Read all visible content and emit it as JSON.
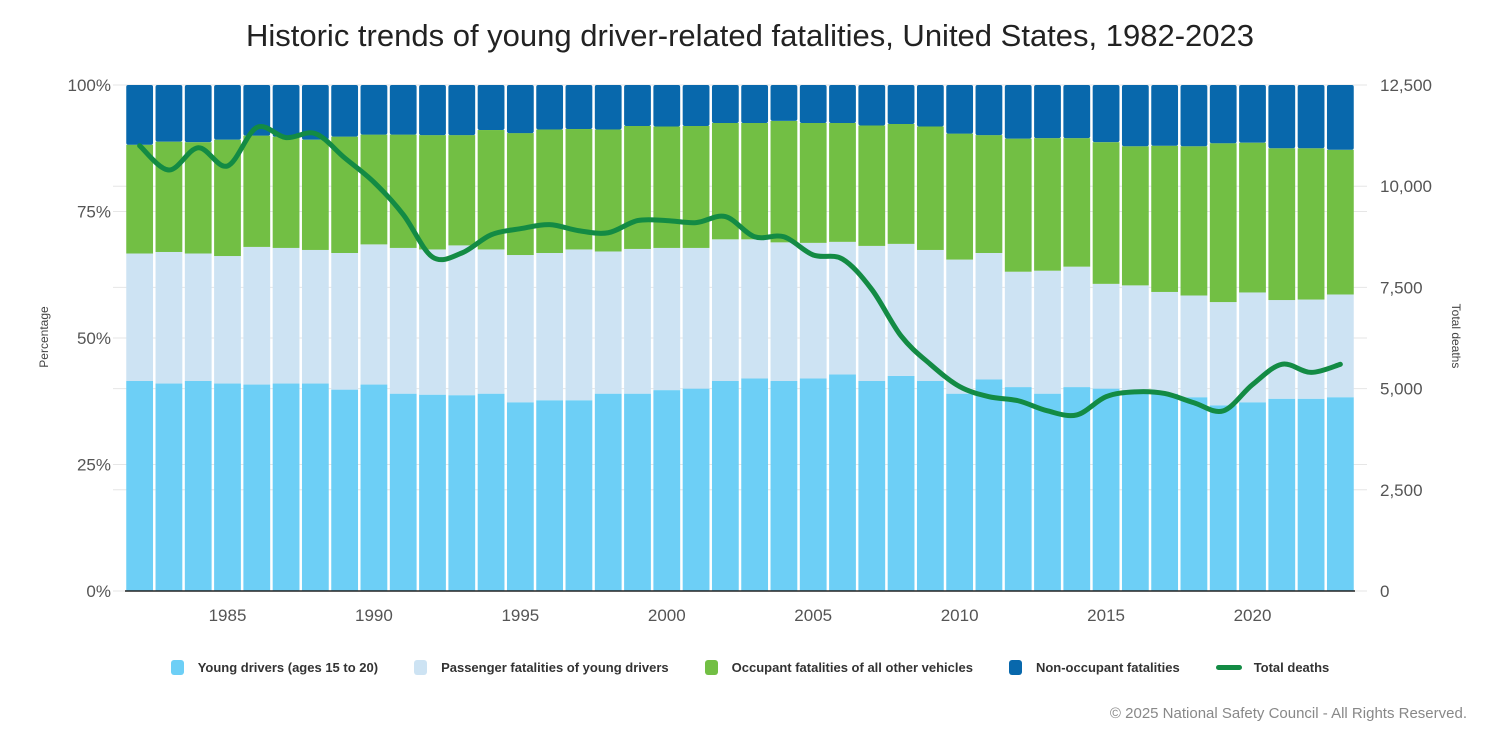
{
  "chart_data": {
    "type": "bar",
    "stacked": true,
    "title": "Historic trends of young driver-related fatalities, United States, 1982-2023",
    "ylabel": "Percentage",
    "y2label": "Total deaths",
    "ylim": [
      0,
      100
    ],
    "y2lim": [
      0,
      12500
    ],
    "yticks": [
      "0%",
      "25%",
      "50%",
      "75%",
      "100%"
    ],
    "y2ticks": [
      "0",
      "2,500",
      "5,000",
      "7,500",
      "10,000",
      "12,500"
    ],
    "xticks": [
      "1985",
      "1990",
      "1995",
      "2000",
      "2005",
      "2010",
      "2015",
      "2020"
    ],
    "categories": [
      1982,
      1983,
      1984,
      1985,
      1986,
      1987,
      1988,
      1989,
      1990,
      1991,
      1992,
      1993,
      1994,
      1995,
      1996,
      1997,
      1998,
      1999,
      2000,
      2001,
      2002,
      2003,
      2004,
      2005,
      2006,
      2007,
      2008,
      2009,
      2010,
      2011,
      2012,
      2013,
      2014,
      2015,
      2016,
      2017,
      2018,
      2019,
      2020,
      2021,
      2022,
      2023
    ],
    "series": [
      {
        "name": "Young drivers (ages 15 to 20)",
        "color": "#6dcff6",
        "values": [
          41.5,
          41,
          41.5,
          41,
          40.8,
          41,
          41,
          39.8,
          40.8,
          39,
          38.8,
          38.7,
          39,
          37.3,
          37.7,
          37.7,
          39,
          39,
          39.7,
          40,
          41.5,
          42,
          41.5,
          42,
          42.8,
          41.5,
          42.5,
          41.5,
          39,
          41.8,
          40.3,
          39,
          40.3,
          40,
          39.3,
          39,
          38.3,
          36.7,
          37.3,
          38,
          38,
          38.3
        ]
      },
      {
        "name": "Passenger fatalities of young drivers",
        "color": "#cde3f3",
        "values": [
          25.2,
          26,
          25.2,
          25.2,
          27.2,
          26.8,
          26.4,
          27,
          27.7,
          28.8,
          28.7,
          29.6,
          28.5,
          29.1,
          29.1,
          29.8,
          28.1,
          28.6,
          28.1,
          27.8,
          28,
          27.5,
          27.4,
          26.8,
          26.2,
          26.7,
          26.1,
          25.9,
          26.5,
          25,
          22.8,
          24.3,
          23.8,
          20.7,
          21.1,
          20.1,
          20.1,
          20.4,
          21.7,
          19.5,
          19.6,
          20.3
        ]
      },
      {
        "name": "Occupant fatalities of all other vehicles",
        "color": "#72bf44",
        "values": [
          21.5,
          21.8,
          22,
          23,
          22,
          22,
          21.8,
          23,
          21.7,
          22.4,
          22.6,
          21.8,
          23.6,
          24.1,
          24.4,
          23.8,
          24.1,
          24.3,
          24,
          24.1,
          23,
          23,
          24,
          23.7,
          23.5,
          23.8,
          23.7,
          24.4,
          24.9,
          23.3,
          26.3,
          26.2,
          25.4,
          28,
          27.5,
          28.9,
          29.5,
          31.4,
          29.6,
          30,
          29.9,
          28.6
        ]
      },
      {
        "name": "Non-occupant fatalities",
        "color": "#0868ac",
        "values": [
          11.8,
          11.2,
          11.3,
          10.8,
          10,
          10.2,
          10.8,
          10.2,
          9.8,
          9.8,
          9.9,
          9.9,
          8.9,
          9.5,
          8.8,
          8.7,
          8.8,
          8.1,
          8.2,
          8.1,
          7.5,
          7.5,
          7.1,
          7.5,
          7.5,
          8,
          7.7,
          8.2,
          9.6,
          9.9,
          10.6,
          10.5,
          10.5,
          11.3,
          12.1,
          12,
          12.1,
          11.5,
          11.4,
          12.5,
          12.5,
          12.8
        ]
      }
    ],
    "line": {
      "name": "Total deaths",
      "color": "#138b44",
      "axis": "right",
      "values": [
        11000,
        10400,
        10950,
        10500,
        11450,
        11200,
        11300,
        10700,
        10100,
        9300,
        8250,
        8350,
        8800,
        8950,
        9050,
        8900,
        8850,
        9150,
        9150,
        9100,
        9250,
        8750,
        8750,
        8300,
        8200,
        7450,
        6300,
        5600,
        5050,
        4800,
        4700,
        4450,
        4350,
        4800,
        4920,
        4880,
        4650,
        4450,
        5100,
        5600,
        5400,
        5600
      ]
    }
  },
  "legend": [
    {
      "label": "Young drivers (ages 15 to 20)",
      "kind": "box",
      "color": "#6dcff6"
    },
    {
      "label": "Passenger fatalities of young drivers",
      "kind": "box",
      "color": "#cde3f3"
    },
    {
      "label": "Occupant fatalities of all other vehicles",
      "kind": "box",
      "color": "#72bf44"
    },
    {
      "label": "Non-occupant fatalities",
      "kind": "box",
      "color": "#0868ac"
    },
    {
      "label": "Total deaths",
      "kind": "line",
      "color": "#138b44"
    }
  ],
  "credit": "© 2025 National Safety Council - All Rights Reserved."
}
